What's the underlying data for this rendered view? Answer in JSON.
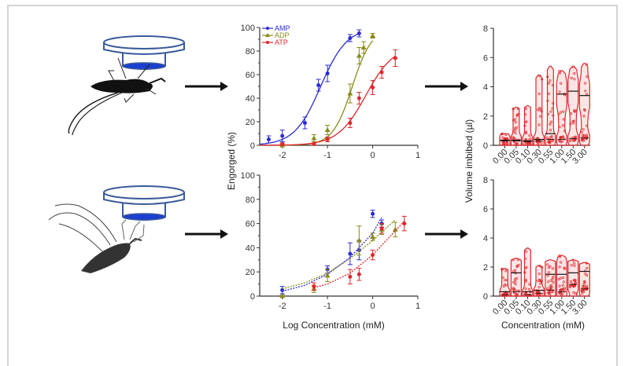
{
  "figure": {
    "illustrations": [
      {
        "name": "mosquito-fed-feeder",
        "description": "engorged mosquito feeding from membrane feeder"
      },
      {
        "name": "mosquito-unfed-feeder",
        "description": "unfed mosquito probing membrane feeder"
      }
    ],
    "colors": {
      "AMP": "#2b2bd4",
      "ADP": "#8a8a1a",
      "ATP": "#e0262b",
      "violin": "#e0262b",
      "feeder": "#3a5a9a",
      "feeder_fill": "#1a3fd0"
    }
  },
  "chart_data": [
    {
      "id": "dose-response-top",
      "type": "line",
      "title": "",
      "xlabel": "",
      "ylabel": "Engorged (%)",
      "xlim": [
        -2.5,
        1
      ],
      "ylim": [
        0,
        100
      ],
      "xticks": [
        "-2",
        "-1",
        "0",
        "1"
      ],
      "xtick_values": [
        -2,
        -1,
        0,
        1
      ],
      "yticks": [
        "0",
        "20",
        "40",
        "60",
        "80",
        "100"
      ],
      "ytick_values": [
        0,
        20,
        40,
        60,
        80,
        100
      ],
      "legend": {
        "placement": "top-left",
        "entries": [
          "AMP",
          "ADP",
          "ATP"
        ]
      },
      "series": [
        {
          "name": "AMP",
          "marker": "circle",
          "line": "solid",
          "x": [
            -2.3,
            -2.0,
            -1.5,
            -1.2,
            -1.0,
            -0.5,
            -0.3
          ],
          "y": [
            5,
            8,
            19,
            51,
            61,
            91,
            95
          ],
          "err": [
            3,
            5,
            5,
            5,
            7,
            3,
            3
          ],
          "fit": {
            "bottom": 0,
            "top": 100,
            "logEC50": -1.15,
            "hill": 1.5
          }
        },
        {
          "name": "ADP",
          "marker": "triangle",
          "line": "solid",
          "x": [
            -2.0,
            -1.3,
            -1.0,
            -0.5,
            -0.3,
            -0.2,
            0.0
          ],
          "y": [
            0,
            6,
            13,
            44,
            76,
            83,
            93
          ],
          "err": [
            1,
            3,
            4,
            8,
            7,
            5,
            2
          ],
          "fit": {
            "bottom": 0,
            "top": 100,
            "logEC50": -0.45,
            "hill": 2.0
          }
        },
        {
          "name": "ATP",
          "marker": "circle",
          "line": "solid",
          "x": [
            -2.0,
            -1.3,
            -1.0,
            -0.5,
            -0.3,
            0.0,
            0.2,
            0.5
          ],
          "y": [
            1,
            1,
            5,
            19,
            40,
            49,
            62,
            74
          ],
          "err": [
            1,
            1,
            2,
            4,
            5,
            6,
            5,
            7
          ],
          "fit": {
            "bottom": 0,
            "top": 85,
            "logEC50": -0.15,
            "hill": 1.4
          }
        }
      ]
    },
    {
      "id": "dose-response-bottom",
      "type": "line",
      "title": "",
      "xlabel": "Log Concentration (mM)",
      "ylabel": "Engorged (%)",
      "xlim": [
        -2.5,
        1
      ],
      "ylim": [
        0,
        100
      ],
      "xticks": [
        "-2",
        "-1",
        "0",
        "1"
      ],
      "xtick_values": [
        -2,
        -1,
        0,
        1
      ],
      "yticks": [
        "0",
        "20",
        "40",
        "60",
        "80",
        "100"
      ],
      "ytick_values": [
        0,
        20,
        40,
        60,
        80,
        100
      ],
      "series": [
        {
          "name": "AMP",
          "marker": "circle",
          "line": "dashed",
          "x": [
            -2.0,
            -1.0,
            -0.5,
            -0.3,
            0.0,
            0.2
          ],
          "y": [
            5,
            22,
            35,
            38,
            68,
            60
          ],
          "err": [
            3,
            3,
            9,
            8,
            3,
            3
          ],
          "fit_x": [
            -2.0,
            -1.5,
            -1.0,
            -0.5,
            0.0,
            0.2
          ],
          "fit_y": [
            4,
            9,
            18,
            32,
            52,
            65
          ]
        },
        {
          "name": "ADP",
          "marker": "triangle",
          "line": "dashed",
          "x": [
            -2.0,
            -1.3,
            -1.0,
            -0.3,
            0.0,
            0.2,
            0.5
          ],
          "y": [
            0,
            6,
            17,
            46,
            49,
            55,
            55
          ],
          "err": [
            1,
            3,
            5,
            12,
            3,
            4,
            6
          ],
          "fit_x": [
            -2.0,
            -1.5,
            -1.0,
            -0.5,
            0.0,
            0.5
          ],
          "fit_y": [
            6,
            11,
            19,
            31,
            46,
            63
          ]
        },
        {
          "name": "ATP",
          "marker": "circle",
          "line": "dashed",
          "x": [
            -1.3,
            -0.5,
            -0.3,
            0.0,
            0.2,
            0.7
          ],
          "y": [
            8,
            16,
            18,
            34,
            56,
            60
          ],
          "err": [
            3,
            6,
            5,
            4,
            4,
            6
          ],
          "fit_x": [
            -1.3,
            -1.0,
            -0.5,
            0.0,
            0.3,
            0.7
          ],
          "fit_y": [
            7,
            10,
            19,
            34,
            46,
            62
          ]
        }
      ]
    },
    {
      "id": "violin-top",
      "type": "violin",
      "title": "",
      "xlabel": "",
      "ylabel": "Volume imbibed (µl)",
      "ylim": [
        0,
        8
      ],
      "yticks": [
        "0",
        "2",
        "4",
        "6",
        "8"
      ],
      "ytick_values": [
        0,
        2,
        4,
        6,
        8
      ],
      "categories": [
        "0.00",
        "0.05",
        "0.10",
        "0.30",
        "0.55",
        "1.00",
        "1.50",
        "3.00"
      ],
      "max": [
        0.8,
        2.6,
        2.7,
        4.8,
        5.4,
        5.1,
        5.4,
        5.6
      ],
      "median": [
        0.35,
        0.35,
        0.3,
        0.4,
        0.8,
        3.5,
        3.7,
        3.4
      ],
      "lower_quartile": [
        0.3,
        0.3,
        0.25,
        0.3,
        0.4,
        0.4,
        0.45,
        0.5
      ]
    },
    {
      "id": "violin-bottom",
      "type": "violin",
      "title": "",
      "xlabel": "Concentration (mM)",
      "ylabel": "Volume imbibed (µl)",
      "ylim": [
        0,
        8
      ],
      "yticks": [
        "0",
        "2",
        "4",
        "6",
        "8"
      ],
      "ytick_values": [
        0,
        2,
        4,
        6,
        8
      ],
      "categories": [
        "0.00",
        "0.05",
        "0.10",
        "0.30",
        "0.55",
        "1.00",
        "1.50",
        "3.00"
      ],
      "max": [
        1.9,
        2.6,
        3.3,
        2.1,
        2.5,
        2.8,
        2.5,
        2.3
      ],
      "median": [
        0.3,
        1.6,
        0.3,
        0.4,
        1.5,
        1.5,
        1.6,
        1.7
      ],
      "lower_quartile": [
        0.1,
        0.3,
        0.1,
        0.2,
        0.4,
        0.3,
        0.8,
        0.5
      ]
    }
  ],
  "labels": {
    "engorged_ylabel": "Engorged (%)",
    "log_conc_xlabel": "Log Concentration (mM)",
    "volume_ylabel": "Volume imbibed (µl)",
    "conc_xlabel": "Concentration (mM)"
  }
}
